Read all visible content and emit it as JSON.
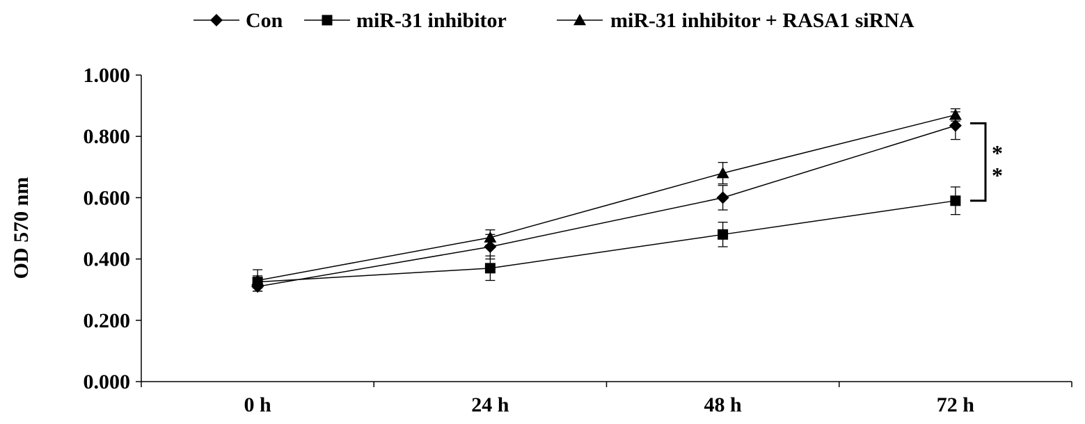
{
  "chart_data": {
    "type": "line",
    "categories": [
      "0 h",
      "24 h",
      "48 h",
      "72 h"
    ],
    "series": [
      {
        "name": "Con",
        "marker": "diamond",
        "values": [
          0.31,
          0.44,
          0.6,
          0.835
        ],
        "errors": [
          0.015,
          0.04,
          0.04,
          0.045
        ]
      },
      {
        "name": "miR-31 inhibitor",
        "marker": "square",
        "values": [
          0.325,
          0.37,
          0.48,
          0.59
        ],
        "errors": [
          0.02,
          0.04,
          0.04,
          0.045
        ]
      },
      {
        "name": "miR-31 inhibitor + RASA1 siRNA",
        "marker": "triangle",
        "values": [
          0.33,
          0.47,
          0.68,
          0.87
        ],
        "errors": [
          0.035,
          0.025,
          0.035,
          0.02
        ]
      }
    ],
    "title": "",
    "xlabel": "",
    "ylabel": "OD 570 nm",
    "ylim": [
      0,
      1.0
    ],
    "yticks": [
      "0.000",
      "0.200",
      "0.400",
      "0.600",
      "0.800",
      "1.000"
    ],
    "legend_position": "top",
    "grid": false,
    "annotation": {
      "text": "**",
      "between_series": [
        "miR-31 inhibitor + RASA1 siRNA",
        "miR-31 inhibitor"
      ],
      "at_category": "72 h"
    }
  }
}
